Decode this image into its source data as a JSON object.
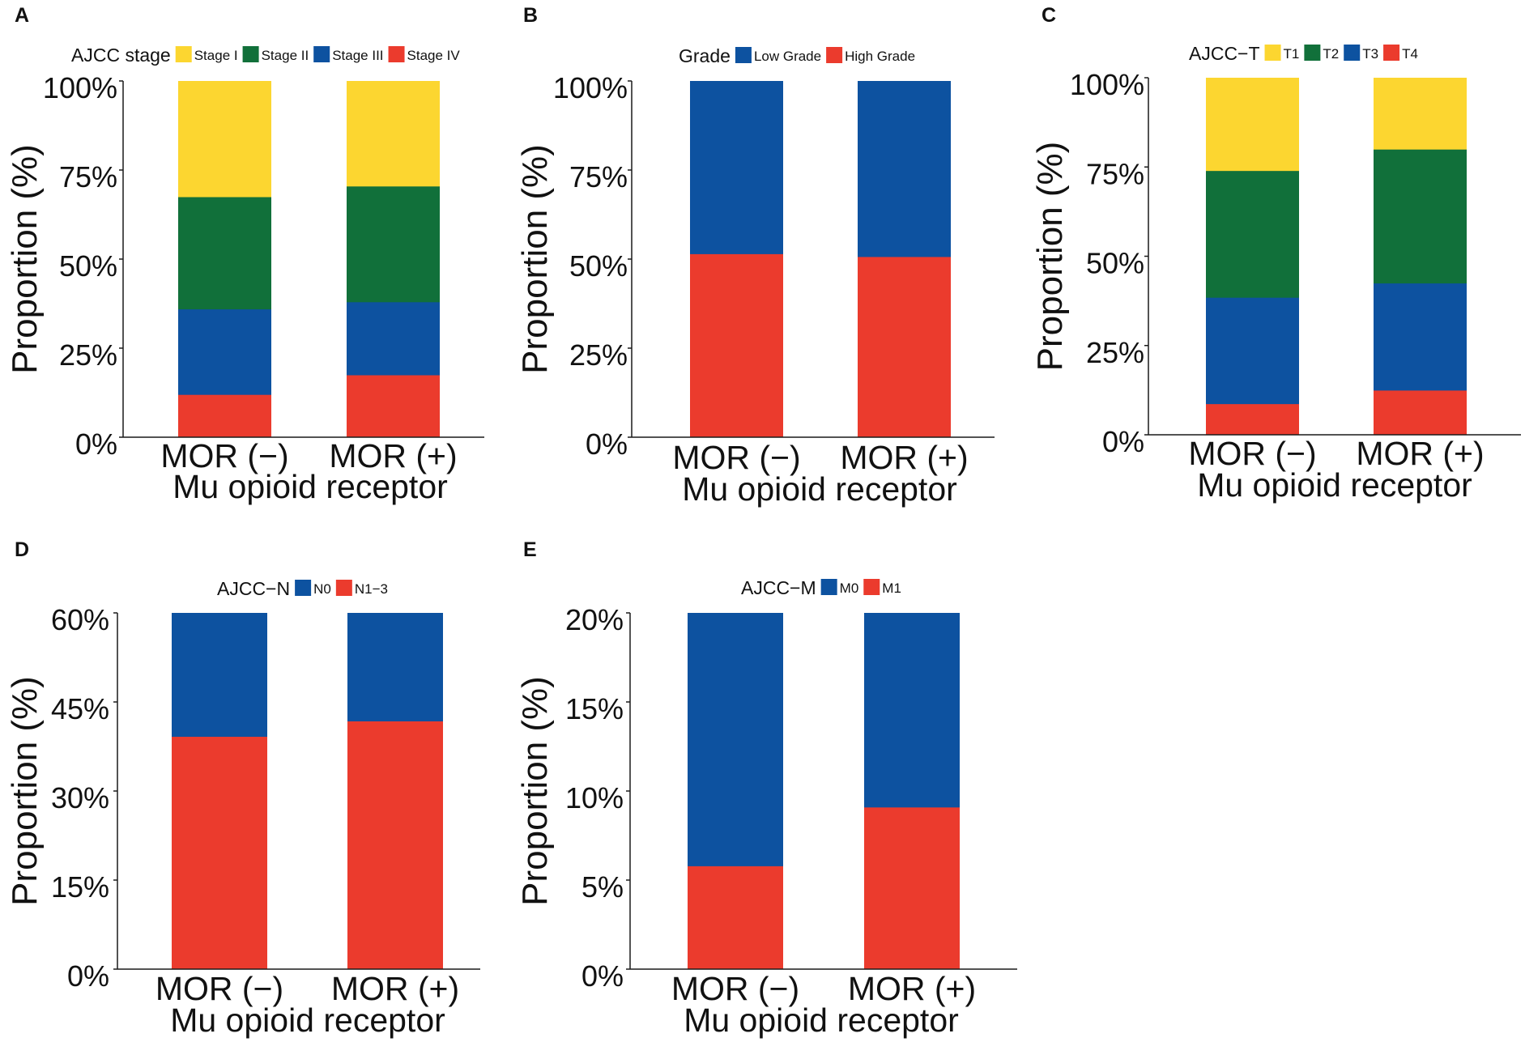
{
  "colors": {
    "yellow": "#FCD630",
    "green": "#11703A",
    "blue": "#0D52A0",
    "red": "#EB3B2D",
    "axis": "#1a1a1a"
  },
  "chart_data": [
    {
      "type": "bar",
      "stacked": true,
      "panel_label": "A",
      "legend_title": "AJCC stage",
      "xlabel": "Mu opioid receptor",
      "ylabel": "Proportion (%)",
      "ylim": [
        0,
        100
      ],
      "yticks": [
        "0%",
        "25%",
        "50%",
        "75%",
        "100%"
      ],
      "categories": [
        "MOR (−)",
        "MOR (+)"
      ],
      "series": [
        {
          "name": "Stage I",
          "color": "#FCD630",
          "values": [
            32.5,
            29.5
          ]
        },
        {
          "name": "Stage II",
          "color": "#11703A",
          "values": [
            31.5,
            32.5
          ]
        },
        {
          "name": "Stage III",
          "color": "#0D52A0",
          "values": [
            24,
            20.5
          ]
        },
        {
          "name": "Stage IV",
          "color": "#EB3B2D",
          "values": [
            12,
            17.5
          ]
        }
      ]
    },
    {
      "type": "bar",
      "stacked": true,
      "panel_label": "B",
      "legend_title": "Grade",
      "xlabel": "Mu opioid receptor",
      "ylabel": "Proportion (%)",
      "ylim": [
        0,
        100
      ],
      "yticks": [
        "0%",
        "25%",
        "50%",
        "75%",
        "100%"
      ],
      "categories": [
        "MOR (−)",
        "MOR (+)"
      ],
      "series": [
        {
          "name": "Low Grade",
          "color": "#0D52A0",
          "values": [
            48.5,
            49.3
          ]
        },
        {
          "name": "High Grade",
          "color": "#EB3B2D",
          "values": [
            51.5,
            50.7
          ]
        }
      ]
    },
    {
      "type": "bar",
      "stacked": true,
      "panel_label": "C",
      "legend_title": "AJCC−T",
      "xlabel": "Mu opioid receptor",
      "ylabel": "Proportion (%)",
      "ylim": [
        0,
        100
      ],
      "yticks": [
        "0%",
        "25%",
        "50%",
        "75%",
        "100%"
      ],
      "categories": [
        "MOR (−)",
        "MOR (+)"
      ],
      "series": [
        {
          "name": "T1",
          "color": "#FCD630",
          "values": [
            26,
            20
          ]
        },
        {
          "name": "T2",
          "color": "#11703A",
          "values": [
            35.5,
            37.5
          ]
        },
        {
          "name": "T3",
          "color": "#0D52A0",
          "values": [
            29.8,
            30
          ]
        },
        {
          "name": "T4",
          "color": "#EB3B2D",
          "values": [
            8.7,
            12.5
          ]
        }
      ]
    },
    {
      "type": "bar",
      "stacked": true,
      "panel_label": "D",
      "legend_title": "AJCC−N",
      "xlabel": "Mu opioid receptor",
      "ylabel": "Proportion (%)",
      "ylim": [
        0,
        60
      ],
      "yticks": [
        "0%",
        "15%",
        "30%",
        "45%",
        "60%"
      ],
      "categories": [
        "MOR (−)",
        "MOR (+)"
      ],
      "series": [
        {
          "name": "N0",
          "color": "#0D52A0",
          "values": [
            20.8,
            18.2
          ]
        },
        {
          "name": "N1−3",
          "color": "#EB3B2D",
          "values": [
            39.2,
            41.8
          ]
        }
      ]
    },
    {
      "type": "bar",
      "stacked": true,
      "panel_label": "E",
      "legend_title": "AJCC−M",
      "xlabel": "Mu opioid receptor",
      "ylabel": "Proportion (%)",
      "ylim": [
        0,
        20
      ],
      "yticks": [
        "0%",
        "5%",
        "10%",
        "15%",
        "20%"
      ],
      "categories": [
        "MOR (−)",
        "MOR (+)"
      ],
      "series": [
        {
          "name": "M0",
          "color": "#0D52A0",
          "values": [
            14.2,
            10.9
          ]
        },
        {
          "name": "M1",
          "color": "#EB3B2D",
          "values": [
            5.8,
            9.1
          ]
        }
      ]
    }
  ]
}
